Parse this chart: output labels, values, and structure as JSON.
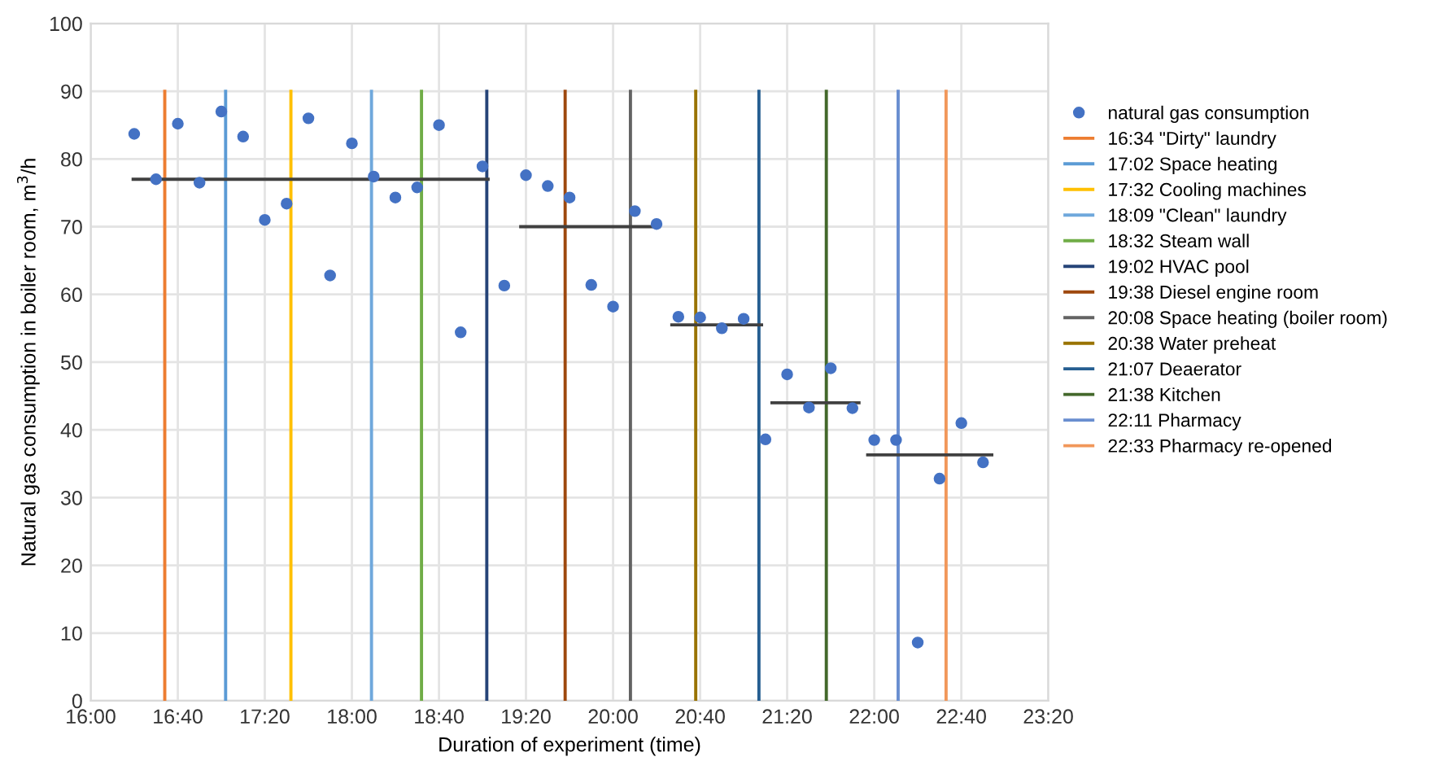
{
  "chart_data": {
    "type": "scatter",
    "xlabel": "Duration of experiment (time)",
    "ylabel": "Natural gas consumption in boiler room, m$^{3}$/h",
    "xlim": [
      16,
      23.333
    ],
    "xticks": [
      {
        "value": 16,
        "label": "16:00"
      },
      {
        "value": 16.667,
        "label": "16:40"
      },
      {
        "value": 17.333,
        "label": "17:20"
      },
      {
        "value": 18,
        "label": "18:00"
      },
      {
        "value": 18.667,
        "label": "18:40"
      },
      {
        "value": 19.333,
        "label": "19:20"
      },
      {
        "value": 20,
        "label": "20:00"
      },
      {
        "value": 20.667,
        "label": "20:40"
      },
      {
        "value": 21.333,
        "label": "21:20"
      },
      {
        "value": 22,
        "label": "22:00"
      },
      {
        "value": 22.667,
        "label": "22:40"
      },
      {
        "value": 23.333,
        "label": "23:20"
      }
    ],
    "ylim": [
      0,
      100
    ],
    "yticks": [
      0,
      10,
      20,
      30,
      40,
      50,
      60,
      70,
      80,
      90,
      100
    ],
    "grid": true,
    "legend": "right",
    "series": [
      {
        "name": "natural gas consumption",
        "marker": "circle",
        "color": "#4472c4",
        "x": [
          16.333,
          16.5,
          16.667,
          16.833,
          17,
          17.167,
          17.333,
          17.5,
          17.667,
          17.833,
          18,
          18.167,
          18.333,
          18.5,
          18.667,
          18.833,
          19,
          19.167,
          19.333,
          19.5,
          19.667,
          19.833,
          20,
          20.167,
          20.333,
          20.5,
          20.667,
          20.833,
          21,
          21.167,
          21.333,
          21.5,
          21.667,
          21.833,
          22,
          22.167,
          22.333,
          22.5,
          22.667,
          22.833
        ],
        "values": [
          83.7,
          77,
          85.2,
          76.5,
          87,
          83.3,
          71,
          73.4,
          86,
          62.8,
          82.3,
          77.4,
          74.3,
          75.8,
          85,
          54.4,
          78.9,
          61.3,
          77.6,
          76,
          74.3,
          61.4,
          58.2,
          72.3,
          70.4,
          56.7,
          56.6,
          55,
          56.4,
          38.6,
          48.2,
          43.3,
          49.1,
          43.2,
          38.5,
          38.5,
          8.6,
          32.8,
          41,
          35.2
        ]
      },
      {
        "type": "line",
        "name": "16:34 \"Dirty\" laundry",
        "color": "#ed7d31",
        "x": [
          16.567,
          16.567
        ],
        "values": [
          0,
          90
        ]
      },
      {
        "type": "line",
        "name": "17:02 Space heating",
        "color": "#5b9bd5",
        "x": [
          17.033,
          17.033
        ],
        "values": [
          0,
          90
        ]
      },
      {
        "type": "line",
        "name": "17:32 Cooling machines",
        "color": "#ffc000",
        "x": [
          17.533,
          17.533
        ],
        "values": [
          0,
          90
        ]
      },
      {
        "type": "line",
        "name": "18:09 \"Clean\" laundry",
        "color": "#6fa8dc",
        "x": [
          18.15,
          18.15
        ],
        "values": [
          0,
          90
        ]
      },
      {
        "type": "line",
        "name": "18:32 Steam wall",
        "color": "#70ad47",
        "x": [
          18.533,
          18.533
        ],
        "values": [
          0,
          90
        ]
      },
      {
        "type": "line",
        "name": "19:02 HVAC pool",
        "color": "#264478",
        "x": [
          19.033,
          19.033
        ],
        "values": [
          0,
          90
        ]
      },
      {
        "type": "line",
        "name": "19:38 Diesel engine room",
        "color": "#9e480e",
        "x": [
          19.633,
          19.633
        ],
        "values": [
          0,
          90
        ]
      },
      {
        "type": "line",
        "name": "20:08 Space heating (boiler room)",
        "color": "#636363",
        "x": [
          20.133,
          20.133
        ],
        "values": [
          0,
          90
        ]
      },
      {
        "type": "line",
        "name": "20:38 Water preheat",
        "color": "#997300",
        "x": [
          20.633,
          20.633
        ],
        "values": [
          0,
          90
        ]
      },
      {
        "type": "line",
        "name": "21:07 Deaerator",
        "color": "#255e91",
        "x": [
          21.117,
          21.117
        ],
        "values": [
          0,
          90
        ]
      },
      {
        "type": "line",
        "name": "21:38 Kitchen",
        "color": "#43682b",
        "x": [
          21.633,
          21.633
        ],
        "values": [
          0,
          90
        ]
      },
      {
        "type": "line",
        "name": "22:11 Pharmacy",
        "color": "#698ed0",
        "x": [
          22.183,
          22.183
        ],
        "values": [
          0,
          90
        ]
      },
      {
        "type": "line",
        "name": "22:33 Pharmacy re-opened",
        "color": "#f1975a",
        "x": [
          22.55,
          22.55
        ],
        "values": [
          0,
          90
        ]
      },
      {
        "type": "line",
        "color": "#404040",
        "x": [
          16.325,
          19.043
        ],
        "values": [
          77,
          77
        ]
      },
      {
        "type": "line",
        "color": "#404040",
        "x": [
          19.293,
          20.35
        ],
        "values": [
          70,
          70
        ]
      },
      {
        "type": "line",
        "color": "#404040",
        "x": [
          20.45,
          21.137
        ],
        "values": [
          55.5,
          55.5
        ]
      },
      {
        "type": "line",
        "color": "#404040",
        "x": [
          21.217,
          21.883
        ],
        "values": [
          44,
          44
        ]
      },
      {
        "type": "line",
        "color": "#404040",
        "x": [
          21.95,
          22.9
        ],
        "values": [
          36.3,
          36.3
        ]
      }
    ]
  }
}
